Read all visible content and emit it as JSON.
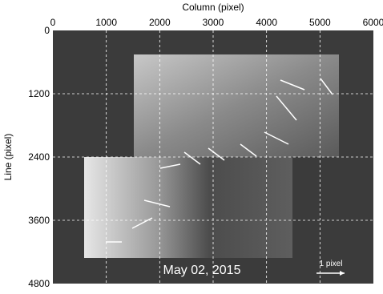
{
  "chart_data": {
    "type": "image",
    "x_label": "Column (pixel)",
    "y_label": "Line (pixel)",
    "xlim": [
      0,
      6000
    ],
    "ylim": [
      0,
      4800
    ],
    "xticks": [
      0,
      1000,
      2000,
      3000,
      4000,
      5000,
      6000
    ],
    "yticks": [
      0,
      1200,
      2400,
      3600,
      4800
    ],
    "x_axis_position": "top",
    "y_inverted": true,
    "grid": true,
    "annotations": [
      "May 02, 2015",
      "1 pixel"
    ]
  }
}
